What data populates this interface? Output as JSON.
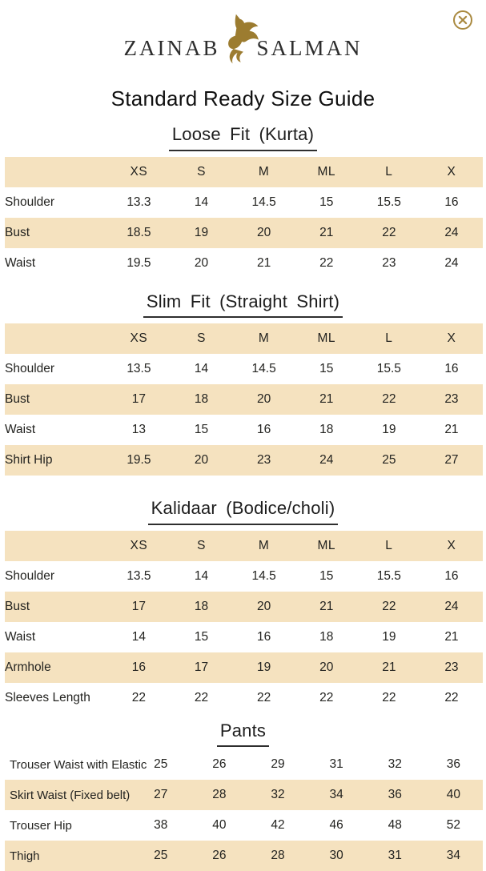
{
  "page": {
    "title": "Standard Ready Size Guide"
  },
  "brand": {
    "name_left": "ZAINAB",
    "name_right": "SALMAN"
  },
  "close_button": {
    "label": "close"
  },
  "colors": {
    "band": "#f5e2bf",
    "gold": "#9c7c30",
    "gold_light": "#a9893f",
    "text": "#232320"
  },
  "sizes": [
    "XS",
    "S",
    "M",
    "ML",
    "L",
    "X"
  ],
  "tables": [
    {
      "title": "Loose Fit (Kurta)",
      "has_header": true,
      "rows": [
        {
          "label": "Shoulder",
          "values": [
            "13.3",
            "14",
            "14.5",
            "15",
            "15.5",
            "16"
          ],
          "shaded": false
        },
        {
          "label": "Bust",
          "values": [
            "18.5",
            "19",
            "20",
            "21",
            "22",
            "24"
          ],
          "shaded": true
        },
        {
          "label": "Waist",
          "values": [
            "19.5",
            "20",
            "21",
            "22",
            "23",
            "24"
          ],
          "shaded": false
        }
      ]
    },
    {
      "title": "Slim Fit (Straight Shirt)",
      "has_header": true,
      "rows": [
        {
          "label": "Shoulder",
          "values": [
            "13.5",
            "14",
            "14.5",
            "15",
            "15.5",
            "16"
          ],
          "shaded": false
        },
        {
          "label": "Bust",
          "values": [
            "17",
            "18",
            "20",
            "21",
            "22",
            "23"
          ],
          "shaded": true
        },
        {
          "label": "Waist",
          "values": [
            "13",
            "15",
            "16",
            "18",
            "19",
            "21"
          ],
          "shaded": false
        },
        {
          "label": "Shirt Hip",
          "values": [
            "19.5",
            "20",
            "23",
            "24",
            "25",
            "27"
          ],
          "shaded": true
        }
      ]
    },
    {
      "title": "Kalidaar (Bodice/choli)",
      "has_header": true,
      "rows": [
        {
          "label": "Shoulder",
          "values": [
            "13.5",
            "14",
            "14.5",
            "15",
            "15.5",
            "16"
          ],
          "shaded": false
        },
        {
          "label": "Bust",
          "values": [
            "17",
            "18",
            "20",
            "21",
            "22",
            "24"
          ],
          "shaded": true
        },
        {
          "label": "Waist",
          "values": [
            "14",
            "15",
            "16",
            "18",
            "19",
            "21"
          ],
          "shaded": false
        },
        {
          "label": "Armhole",
          "values": [
            "16",
            "17",
            "19",
            "20",
            "21",
            "23"
          ],
          "shaded": true
        },
        {
          "label": "Sleeves Length",
          "values": [
            "22",
            "22",
            "22",
            "22",
            "22",
            "22"
          ],
          "shaded": false
        }
      ]
    },
    {
      "title": "Pants",
      "has_header": false,
      "rows": [
        {
          "label": "Trouser Waist with Elastic",
          "values": [
            "25",
            "26",
            "29",
            "31",
            "32",
            "36"
          ],
          "shaded": false
        },
        {
          "label": "Skirt Waist (Fixed belt)",
          "values": [
            "27",
            "28",
            "32",
            "34",
            "36",
            "40"
          ],
          "shaded": true
        },
        {
          "label": "Trouser Hip",
          "values": [
            "38",
            "40",
            "42",
            "46",
            "48",
            "52"
          ],
          "shaded": false
        },
        {
          "label": "Thigh",
          "values": [
            "25",
            "26",
            "28",
            "30",
            "31",
            "34"
          ],
          "shaded": true
        }
      ]
    }
  ]
}
